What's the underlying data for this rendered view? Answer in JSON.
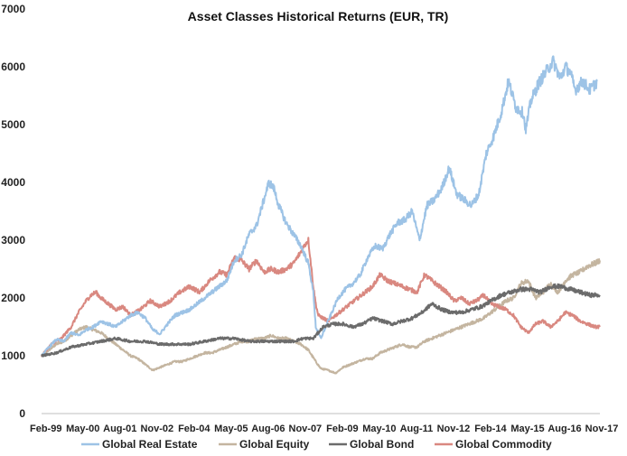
{
  "chart_data": {
    "type": "line",
    "title": "Asset Classes Historical Returns (EUR, TR)",
    "xlabel": "",
    "ylabel": "",
    "ylim": [
      0,
      7000
    ],
    "yticks": [
      "0",
      "1000",
      "2000",
      "3000",
      "4000",
      "5000",
      "6000",
      "7000"
    ],
    "xlim": [
      0,
      226
    ],
    "x_unit": "months since Jan-1999",
    "categories": [
      "Feb-99",
      "May-00",
      "Aug-01",
      "Nov-02",
      "Feb-04",
      "May-05",
      "Aug-06",
      "Nov-07",
      "Feb-09",
      "May-10",
      "Aug-11",
      "Nov-12",
      "Feb-14",
      "May-15",
      "Aug-16",
      "Nov-17"
    ],
    "category_x": [
      1,
      16,
      31,
      46,
      61,
      76,
      91,
      106,
      121,
      136,
      151,
      166,
      181,
      196,
      211,
      226
    ],
    "grid": false,
    "legend": "bottom",
    "series": [
      {
        "name": "Global Real Estate",
        "color": "#9dc3e6",
        "x": [
          0,
          3,
          6,
          9,
          12,
          15,
          18,
          21,
          24,
          27,
          30,
          33,
          36,
          39,
          42,
          45,
          48,
          51,
          54,
          57,
          60,
          63,
          66,
          69,
          72,
          75,
          78,
          81,
          84,
          87,
          90,
          92,
          94,
          96,
          99,
          102,
          105,
          106,
          108,
          110,
          111,
          113,
          114,
          117,
          120,
          123,
          126,
          129,
          132,
          135,
          138,
          141,
          144,
          147,
          150,
          153,
          156,
          159,
          162,
          165,
          168,
          171,
          174,
          177,
          180,
          183,
          186,
          189,
          192,
          195,
          196,
          198,
          201,
          204,
          207,
          210,
          212,
          214,
          216,
          219,
          222,
          225
        ],
        "values": [
          1000,
          1150,
          1280,
          1250,
          1400,
          1350,
          1450,
          1500,
          1600,
          1550,
          1500,
          1600,
          1700,
          1750,
          1650,
          1450,
          1380,
          1550,
          1700,
          1750,
          1800,
          1900,
          2000,
          2100,
          2200,
          2300,
          2650,
          2750,
          3100,
          3250,
          3700,
          4000,
          3900,
          3600,
          3300,
          3100,
          2900,
          2800,
          2600,
          2100,
          1500,
          1300,
          1400,
          1700,
          2000,
          2150,
          2250,
          2400,
          2700,
          2900,
          2850,
          3100,
          3300,
          3350,
          3500,
          3000,
          3600,
          3700,
          3900,
          4250,
          3800,
          3700,
          3600,
          3800,
          4500,
          4800,
          5200,
          5750,
          5300,
          5200,
          4900,
          5400,
          5700,
          5900,
          6100,
          5800,
          6000,
          5900,
          5600,
          5750,
          5600,
          5750
        ]
      },
      {
        "name": "Global Equity",
        "color": "#c4b5a0",
        "x": [
          0,
          3,
          6,
          9,
          12,
          15,
          18,
          21,
          24,
          27,
          30,
          33,
          36,
          39,
          42,
          45,
          48,
          51,
          54,
          57,
          60,
          63,
          66,
          69,
          72,
          75,
          78,
          81,
          84,
          87,
          90,
          93,
          96,
          99,
          102,
          105,
          108,
          111,
          113,
          116,
          119,
          122,
          125,
          128,
          131,
          134,
          137,
          140,
          143,
          146,
          149,
          152,
          155,
          158,
          161,
          164,
          167,
          170,
          173,
          176,
          179,
          182,
          185,
          188,
          191,
          194,
          197,
          200,
          203,
          206,
          209,
          212,
          215,
          218,
          221,
          224,
          226
        ],
        "values": [
          1000,
          1100,
          1200,
          1250,
          1350,
          1450,
          1500,
          1450,
          1400,
          1300,
          1200,
          1100,
          1000,
          950,
          850,
          750,
          800,
          850,
          900,
          900,
          950,
          1000,
          1050,
          1050,
          1100,
          1150,
          1200,
          1250,
          1250,
          1300,
          1300,
          1350,
          1300,
          1300,
          1250,
          1200,
          1100,
          900,
          780,
          750,
          700,
          800,
          850,
          900,
          950,
          950,
          1050,
          1100,
          1150,
          1200,
          1150,
          1150,
          1250,
          1300,
          1350,
          1400,
          1450,
          1500,
          1550,
          1600,
          1650,
          1750,
          1850,
          1950,
          2000,
          2250,
          2300,
          2000,
          2100,
          2250,
          2100,
          2300,
          2400,
          2450,
          2550,
          2600,
          2650
        ]
      },
      {
        "name": "Global Bond",
        "color": "#6b6b6b",
        "x": [
          0,
          6,
          12,
          18,
          24,
          30,
          36,
          42,
          48,
          54,
          60,
          66,
          72,
          78,
          84,
          90,
          96,
          102,
          106,
          110,
          112,
          114,
          118,
          122,
          126,
          130,
          134,
          138,
          142,
          146,
          150,
          154,
          158,
          162,
          166,
          170,
          174,
          178,
          182,
          186,
          190,
          194,
          198,
          202,
          206,
          210,
          214,
          218,
          222,
          226
        ],
        "values": [
          1000,
          1050,
          1150,
          1200,
          1250,
          1300,
          1250,
          1250,
          1200,
          1200,
          1200,
          1250,
          1300,
          1300,
          1250,
          1250,
          1250,
          1250,
          1300,
          1300,
          1400,
          1500,
          1550,
          1550,
          1500,
          1550,
          1650,
          1600,
          1550,
          1600,
          1650,
          1750,
          1900,
          1800,
          1750,
          1750,
          1800,
          1850,
          1950,
          2050,
          2100,
          2150,
          2150,
          2100,
          2200,
          2200,
          2150,
          2100,
          2050,
          2050
        ]
      },
      {
        "name": "Global Commodity",
        "color": "#d98880",
        "x": [
          0,
          4,
          8,
          12,
          15,
          18,
          20,
          22,
          24,
          27,
          30,
          33,
          36,
          40,
          44,
          48,
          52,
          56,
          60,
          64,
          68,
          72,
          75,
          78,
          81,
          84,
          87,
          90,
          93,
          96,
          99,
          102,
          105,
          107,
          108,
          109,
          110,
          111,
          112,
          114,
          116,
          119,
          122,
          125,
          128,
          131,
          134,
          137,
          140,
          143,
          146,
          149,
          152,
          155,
          158,
          161,
          164,
          167,
          170,
          173,
          176,
          179,
          182,
          185,
          188,
          191,
          194,
          197,
          200,
          203,
          206,
          209,
          212,
          215,
          218,
          221,
          224,
          226
        ],
        "values": [
          1000,
          1200,
          1300,
          1500,
          1750,
          1950,
          2050,
          2100,
          2000,
          1900,
          1800,
          1850,
          1700,
          1800,
          1950,
          1850,
          1950,
          2100,
          2200,
          2100,
          2300,
          2450,
          2400,
          2700,
          2650,
          2500,
          2650,
          2450,
          2500,
          2450,
          2500,
          2600,
          2800,
          2950,
          3000,
          2600,
          2200,
          1900,
          1700,
          1650,
          1600,
          1700,
          1800,
          1900,
          2000,
          2100,
          2200,
          2400,
          2300,
          2250,
          2200,
          2150,
          2100,
          2400,
          2300,
          2200,
          2100,
          1950,
          2000,
          1900,
          1950,
          2050,
          1900,
          1850,
          1800,
          1700,
          1500,
          1400,
          1550,
          1600,
          1500,
          1600,
          1750,
          1700,
          1600,
          1550,
          1500,
          1500
        ]
      }
    ]
  }
}
